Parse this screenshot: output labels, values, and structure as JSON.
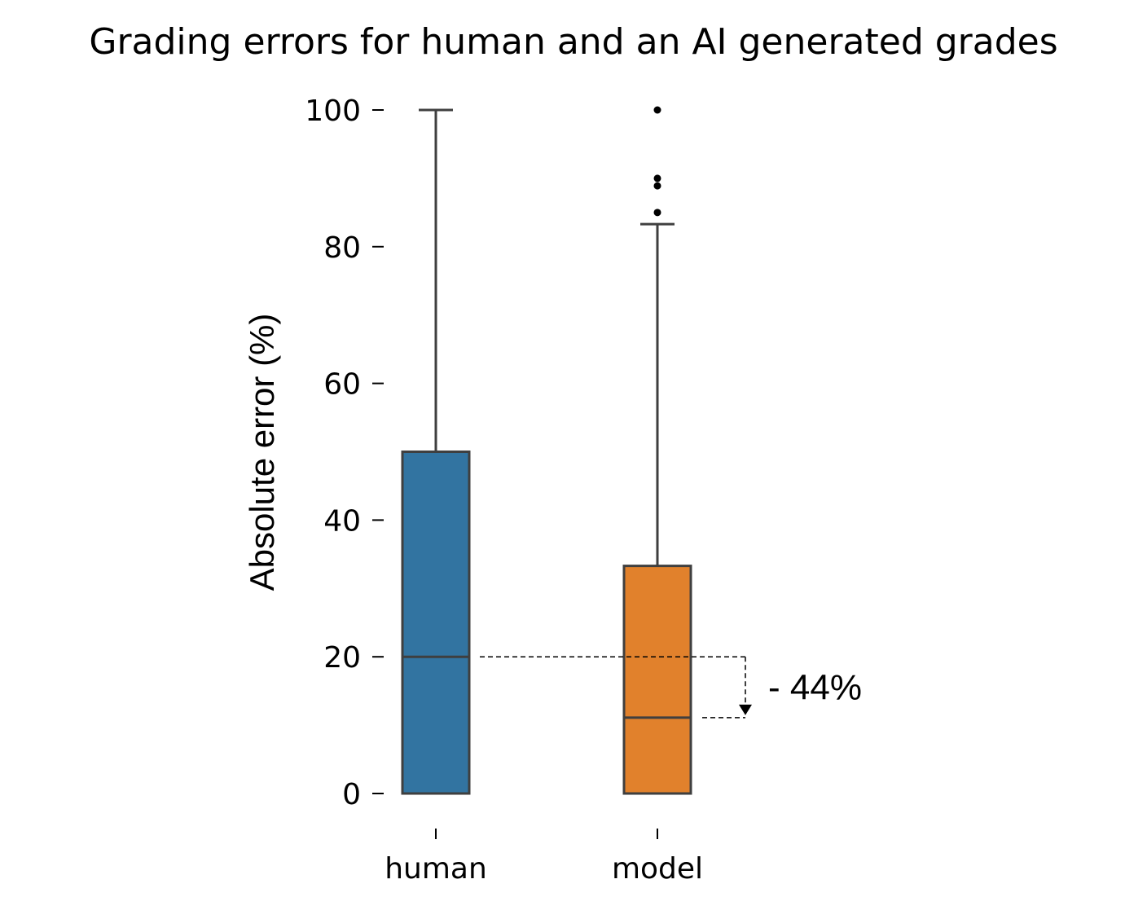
{
  "chart_data": {
    "type": "box",
    "title": "Grading errors for human and an AI generated grades",
    "xlabel": "",
    "ylabel": "Absolute error (%)",
    "ylim": [
      0,
      100
    ],
    "yticks": [
      0,
      20,
      40,
      60,
      80,
      100
    ],
    "grid": false,
    "categories": [
      "human",
      "model"
    ],
    "series": [
      {
        "category": "human",
        "color": "#3274a1",
        "whisker_low": 0,
        "q1": 0,
        "median": 20,
        "q3": 50,
        "whisker_high": 100,
        "outliers": []
      },
      {
        "category": "model",
        "color": "#e1812c",
        "whisker_low": 0,
        "q1": 0,
        "median": 11.1,
        "q3": 33.3,
        "whisker_high": 83.3,
        "outliers": [
          85,
          88.9,
          90,
          100
        ]
      }
    ],
    "annotation": {
      "text": "- 44%",
      "from_value": 20,
      "to_value": 11.1
    }
  }
}
